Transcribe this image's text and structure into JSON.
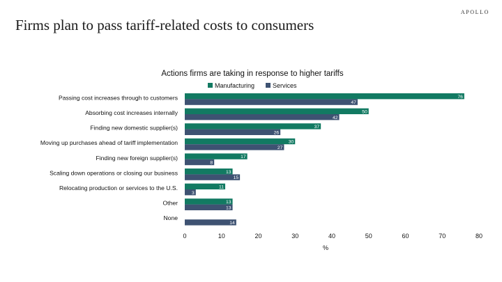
{
  "brand": "APOLLO",
  "slide_title": "Firms plan to pass tariff-related costs to consumers",
  "colors": {
    "manufacturing": "#127a62",
    "services": "#3e5272"
  },
  "chart_data": {
    "type": "bar",
    "orientation": "horizontal",
    "title": "Actions firms are taking in response to higher tariffs",
    "xlabel": "%",
    "ylabel": "",
    "xlim": [
      0,
      80
    ],
    "xticks": [
      0,
      10,
      20,
      30,
      40,
      50,
      60,
      70,
      80
    ],
    "grid": false,
    "legend": "top",
    "categories": [
      "Passing cost increases through to customers",
      "Absorbing cost increases internally",
      "Finding new domestic supplier(s)",
      "Moving up purchases ahead of tariff implementation",
      "Finding new foreign supplier(s)",
      "Scaling down operations or closing our business",
      "Relocating production or services to the U.S.",
      "Other",
      "None"
    ],
    "series": [
      {
        "name": "Manufacturing",
        "values": [
          76,
          50,
          37,
          30,
          17,
          13,
          11,
          13,
          null
        ]
      },
      {
        "name": "Services",
        "values": [
          47,
          42,
          26,
          27,
          8,
          15,
          3,
          13,
          14
        ]
      }
    ]
  }
}
